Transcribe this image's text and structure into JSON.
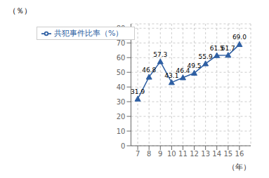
{
  "chart_data": {
    "type": "line",
    "x": [
      7,
      8,
      9,
      10,
      11,
      12,
      13,
      14,
      15,
      16
    ],
    "series": [
      {
        "name": "共犯事件比率（%）",
        "color": "#2E5FA3",
        "marker": "triangle",
        "values": [
          31.9,
          46.8,
          57.3,
          43.1,
          46.4,
          49.5,
          55.9,
          61.5,
          61.7,
          69.0
        ],
        "value_labels": [
          "31.9",
          "46.8",
          "57.3",
          "43.1",
          "46.4",
          "49.5",
          "55.9",
          "61.5",
          "61.7",
          "69.0"
        ]
      }
    ],
    "xlabel": "（年）",
    "ylabel": "（％）",
    "xlim": [
      6.4,
      17.0
    ],
    "xticks": [
      7,
      8,
      9,
      10,
      11,
      12,
      13,
      14,
      15,
      16
    ],
    "ylim": [
      0,
      83
    ],
    "yticks": [
      0,
      10,
      20,
      30,
      40,
      50,
      60,
      70,
      80
    ],
    "grid": true,
    "legend": "upper left",
    "data_labels": true
  }
}
